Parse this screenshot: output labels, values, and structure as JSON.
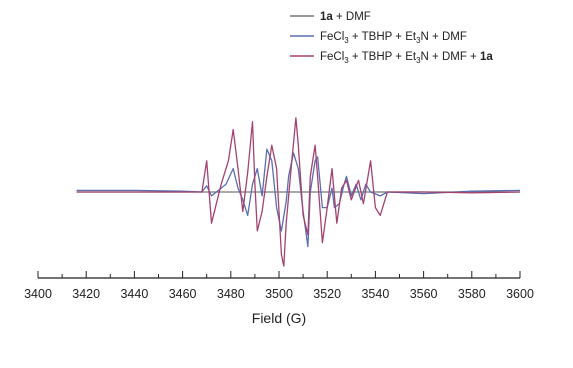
{
  "chart_data": {
    "type": "line",
    "title": "",
    "xlabel": "Field (G)",
    "ylabel": "",
    "xlim": [
      3400,
      3600
    ],
    "ylim": [
      -1,
      1
    ],
    "x_ticks": [
      "3400",
      "3420",
      "3440",
      "3460",
      "3480",
      "3500",
      "3520",
      "3540",
      "3560",
      "3580",
      "3600"
    ],
    "x_range_of_data": [
      3416,
      3600
    ],
    "grid": false,
    "y_axis_visible": false,
    "legend_placement": "top-right",
    "legend": [
      {
        "label": "1a + DMF",
        "color": "#777777"
      },
      {
        "label": "FeCl3 + TBHP + Et3N + DMF",
        "color": "#5a6fb0"
      },
      {
        "label": "FeCl3 + TBHP + Et3N + DMF + 1a",
        "color": "#a4426f"
      }
    ],
    "series": [
      {
        "name": "1a + DMF",
        "color": "#777777",
        "points": [
          [
            3416,
            0.0
          ],
          [
            3600,
            0.0
          ]
        ]
      },
      {
        "name": "FeCl3 + TBHP + Et3N + DMF",
        "color": "#5a6fb0",
        "points": [
          [
            3416,
            0.02
          ],
          [
            3440,
            0.02
          ],
          [
            3460,
            0.01
          ],
          [
            3468,
            0.0
          ],
          [
            3470,
            0.08
          ],
          [
            3472,
            -0.05
          ],
          [
            3476,
            0.05
          ],
          [
            3478,
            0.1
          ],
          [
            3481,
            0.3
          ],
          [
            3483,
            0.05
          ],
          [
            3485,
            -0.1
          ],
          [
            3487,
            -0.3
          ],
          [
            3489,
            0.1
          ],
          [
            3491,
            0.3
          ],
          [
            3493,
            -0.05
          ],
          [
            3495,
            0.55
          ],
          [
            3497,
            0.4
          ],
          [
            3499,
            -0.2
          ],
          [
            3501,
            -0.5
          ],
          [
            3503,
            -0.12
          ],
          [
            3504,
            0.2
          ],
          [
            3506,
            0.5
          ],
          [
            3508,
            0.3
          ],
          [
            3510,
            -0.25
          ],
          [
            3512,
            -0.7
          ],
          [
            3513,
            0.0
          ],
          [
            3515,
            0.4
          ],
          [
            3516,
            0.45
          ],
          [
            3518,
            -0.2
          ],
          [
            3520,
            -0.2
          ],
          [
            3522,
            0.05
          ],
          [
            3523,
            -0.2
          ],
          [
            3525,
            -0.15
          ],
          [
            3527,
            0.1
          ],
          [
            3528,
            0.2
          ],
          [
            3530,
            -0.05
          ],
          [
            3532,
            0.1
          ],
          [
            3534,
            -0.1
          ],
          [
            3536,
            0.1
          ],
          [
            3538,
            0.0
          ],
          [
            3542,
            -0.05
          ],
          [
            3545,
            0.0
          ],
          [
            3560,
            -0.02
          ],
          [
            3580,
            0.01
          ],
          [
            3600,
            0.02
          ]
        ]
      },
      {
        "name": "FeCl3 + TBHP + Et3N + DMF + 1a",
        "color": "#a4426f",
        "points": [
          [
            3416,
            0.0
          ],
          [
            3440,
            0.0
          ],
          [
            3460,
            0.0
          ],
          [
            3468,
            0.0
          ],
          [
            3470,
            0.4
          ],
          [
            3472,
            -0.4
          ],
          [
            3476,
            0.1
          ],
          [
            3479,
            0.4
          ],
          [
            3481,
            0.8
          ],
          [
            3483,
            0.3
          ],
          [
            3485,
            -0.25
          ],
          [
            3487,
            0.25
          ],
          [
            3489,
            0.9
          ],
          [
            3490,
            0.1
          ],
          [
            3491,
            -0.5
          ],
          [
            3493,
            -0.25
          ],
          [
            3495,
            0.2
          ],
          [
            3497,
            0.6
          ],
          [
            3499,
            0.3
          ],
          [
            3501,
            -0.8
          ],
          [
            3502,
            -0.95
          ],
          [
            3503,
            -0.4
          ],
          [
            3505,
            0.3
          ],
          [
            3507,
            0.95
          ],
          [
            3508,
            0.6
          ],
          [
            3510,
            -0.3
          ],
          [
            3512,
            -0.55
          ],
          [
            3513,
            0.2
          ],
          [
            3515,
            0.6
          ],
          [
            3516,
            0.2
          ],
          [
            3518,
            -0.65
          ],
          [
            3520,
            -0.2
          ],
          [
            3522,
            0.3
          ],
          [
            3524,
            -0.4
          ],
          [
            3526,
            0.05
          ],
          [
            3528,
            0.15
          ],
          [
            3530,
            -0.1
          ],
          [
            3533,
            0.15
          ],
          [
            3535,
            -0.15
          ],
          [
            3538,
            0.4
          ],
          [
            3540,
            -0.2
          ],
          [
            3542,
            -0.3
          ],
          [
            3545,
            0.0
          ],
          [
            3560,
            0.0
          ],
          [
            3580,
            -0.01
          ],
          [
            3600,
            0.0
          ]
        ]
      }
    ]
  }
}
